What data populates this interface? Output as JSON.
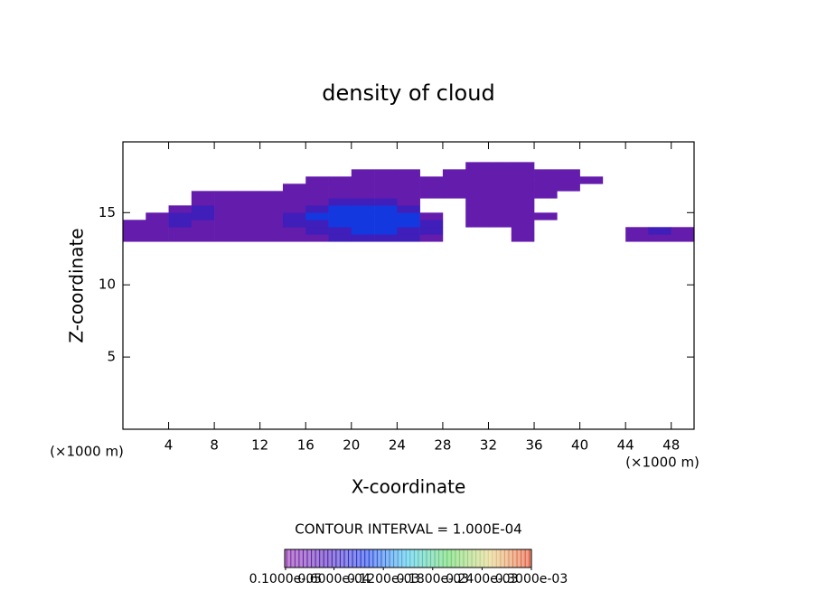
{
  "chart_data": {
    "type": "contour",
    "title": "density of cloud",
    "x_label": "X-coordinate",
    "y_label": "Z-coordinate",
    "x_unit": "(×1000 m)",
    "y_unit": "(×1000 m)",
    "contour_interval": "CONTOUR INTERVAL = 1.000E-04",
    "xlim": [
      0,
      50
    ],
    "ylim": [
      0,
      19.9
    ],
    "xticks": [
      4,
      8,
      12,
      16,
      20,
      24,
      28,
      32,
      36,
      40,
      44,
      48
    ],
    "yticks": [
      5,
      10,
      15
    ],
    "x": [
      1,
      3,
      5,
      7,
      9,
      11,
      13,
      15,
      17,
      19,
      21,
      23,
      25,
      27,
      29,
      31,
      33,
      35,
      37,
      39,
      41,
      43,
      45,
      47,
      49
    ],
    "z": [
      13.25,
      13.75,
      14.25,
      14.75,
      15.25,
      15.75,
      16.25,
      16.75,
      17.25,
      17.75,
      18.25
    ],
    "values": [
      [
        3e-05,
        3e-05,
        3e-05,
        3e-05,
        3e-05,
        3e-05,
        3e-05,
        3e-05,
        3e-05,
        6e-05,
        6e-05,
        6e-05,
        6e-05,
        3e-05,
        null,
        null,
        null,
        3e-05,
        null,
        null,
        null,
        null,
        3e-05,
        3e-05,
        3e-05
      ],
      [
        3e-05,
        3e-05,
        3e-05,
        3e-05,
        3e-05,
        3e-05,
        3e-05,
        3e-05,
        6e-05,
        6e-05,
        0.0001,
        0.0001,
        6e-05,
        6e-05,
        null,
        null,
        null,
        3e-05,
        null,
        null,
        null,
        null,
        3e-05,
        6e-05,
        3e-05
      ],
      [
        3e-05,
        3e-05,
        6e-05,
        3e-05,
        3e-05,
        3e-05,
        3e-05,
        6e-05,
        6e-05,
        0.0001,
        0.0001,
        0.0001,
        0.0001,
        6e-05,
        null,
        3e-05,
        3e-05,
        3e-05,
        null,
        null,
        null,
        null,
        null,
        null,
        null
      ],
      [
        null,
        3e-05,
        6e-05,
        6e-05,
        3e-05,
        3e-05,
        3e-05,
        6e-05,
        0.0001,
        0.0001,
        0.0001,
        0.0001,
        0.0001,
        3e-05,
        null,
        3e-05,
        3e-05,
        3e-05,
        3e-05,
        null,
        null,
        null,
        null,
        null,
        null
      ],
      [
        null,
        null,
        3e-05,
        6e-05,
        3e-05,
        3e-05,
        3e-05,
        3e-05,
        6e-05,
        0.0001,
        0.0001,
        0.0001,
        6e-05,
        null,
        null,
        3e-05,
        3e-05,
        3e-05,
        null,
        null,
        null,
        null,
        null,
        null,
        null
      ],
      [
        null,
        null,
        null,
        3e-05,
        3e-05,
        3e-05,
        3e-05,
        3e-05,
        3e-05,
        6e-05,
        6e-05,
        6e-05,
        3e-05,
        null,
        null,
        3e-05,
        3e-05,
        3e-05,
        null,
        null,
        null,
        null,
        null,
        null,
        null
      ],
      [
        null,
        null,
        null,
        3e-05,
        3e-05,
        3e-05,
        3e-05,
        3e-05,
        3e-05,
        3e-05,
        3e-05,
        3e-05,
        3e-05,
        3e-05,
        3e-05,
        3e-05,
        3e-05,
        3e-05,
        3e-05,
        null,
        null,
        null,
        null,
        null,
        null
      ],
      [
        null,
        null,
        null,
        null,
        null,
        null,
        null,
        3e-05,
        3e-05,
        3e-05,
        3e-05,
        3e-05,
        3e-05,
        3e-05,
        3e-05,
        3e-05,
        3e-05,
        3e-05,
        3e-05,
        3e-05,
        null,
        null,
        null,
        null,
        null
      ],
      [
        null,
        null,
        null,
        null,
        null,
        null,
        null,
        null,
        3e-05,
        3e-05,
        3e-05,
        3e-05,
        3e-05,
        3e-05,
        3e-05,
        3e-05,
        3e-05,
        3e-05,
        3e-05,
        3e-05,
        3e-05,
        null,
        null,
        null,
        null
      ],
      [
        null,
        null,
        null,
        null,
        null,
        null,
        null,
        null,
        null,
        null,
        3e-05,
        3e-05,
        3e-05,
        null,
        3e-05,
        3e-05,
        3e-05,
        3e-05,
        3e-05,
        3e-05,
        null,
        null,
        null,
        null,
        null
      ],
      [
        null,
        null,
        null,
        null,
        null,
        null,
        null,
        null,
        null,
        null,
        null,
        null,
        null,
        null,
        null,
        3e-05,
        3e-05,
        3e-05,
        null,
        null,
        null,
        null,
        null,
        null,
        null
      ]
    ],
    "clim": [
      0,
      0.0003
    ],
    "colorscale": [
      "#8a22a8",
      "#4a18b0",
      "#1438e0",
      "#40c0e0",
      "#60d060",
      "#e0d080",
      "#e04020"
    ],
    "colorbar_ticks": [
      {
        "value": 1e-06,
        "label": "0.1000e-05"
      },
      {
        "value": 6e-05,
        "label": "0.6000e-04"
      },
      {
        "value": 0.00012,
        "label": "0.1200e-03"
      },
      {
        "value": 0.00018,
        "label": "0.1800e-03"
      },
      {
        "value": 0.00024,
        "label": "0.2400e-03"
      },
      {
        "value": 0.0003,
        "label": "0.3000e-03"
      }
    ]
  }
}
